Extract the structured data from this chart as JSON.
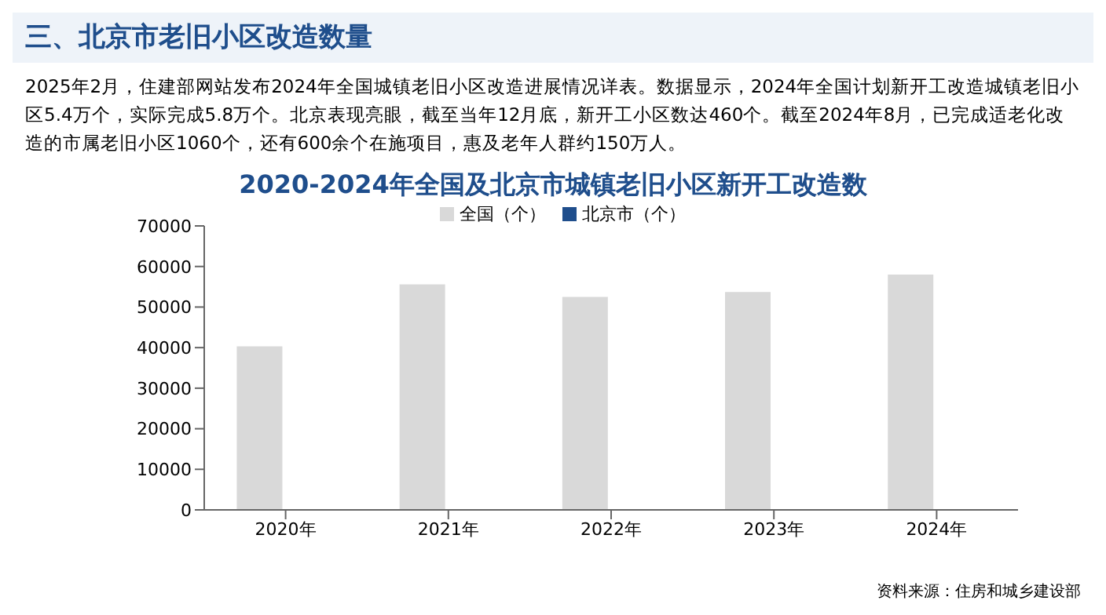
{
  "chart_data": {
    "type": "bar",
    "title": "2020-2024年全国及北京市城镇老旧小区新开工改造数",
    "subtitle": "2025年2月，住建部网站发布2024年全国城镇老旧小区改造进展情况详表。数据显示，2024年全国计划新开工改造城镇老旧小区5.4万个，实际完成5.8万个。北京表现亮眼，截至当年12月底，新开工小区数达460个。截至2024年8月，已完成适老化改造的市属老旧小区1060个，还有600余个在施项目，惠及老年人群约150万人。",
    "annotations": [
      "三、北京市老旧小区改造数量",
      "资料来源：住房和城乡建设部"
    ],
    "categories": [
      "2020年",
      "2021年",
      "2022年",
      "2023年",
      "2024年"
    ],
    "series": [
      {
        "name": "全国（个）",
        "color": "#d9d9d9",
        "values": [
          40300,
          55600,
          52500,
          53700,
          58000
        ]
      },
      {
        "name": "北京市（个）",
        "color": "#1f4e8c",
        "values": [
          null,
          null,
          null,
          null,
          null
        ]
      }
    ],
    "ylim": [
      0,
      70000
    ],
    "yticks": [
      0,
      10000,
      20000,
      30000,
      40000,
      50000,
      60000,
      70000
    ],
    "grid": false,
    "legend": "top"
  }
}
